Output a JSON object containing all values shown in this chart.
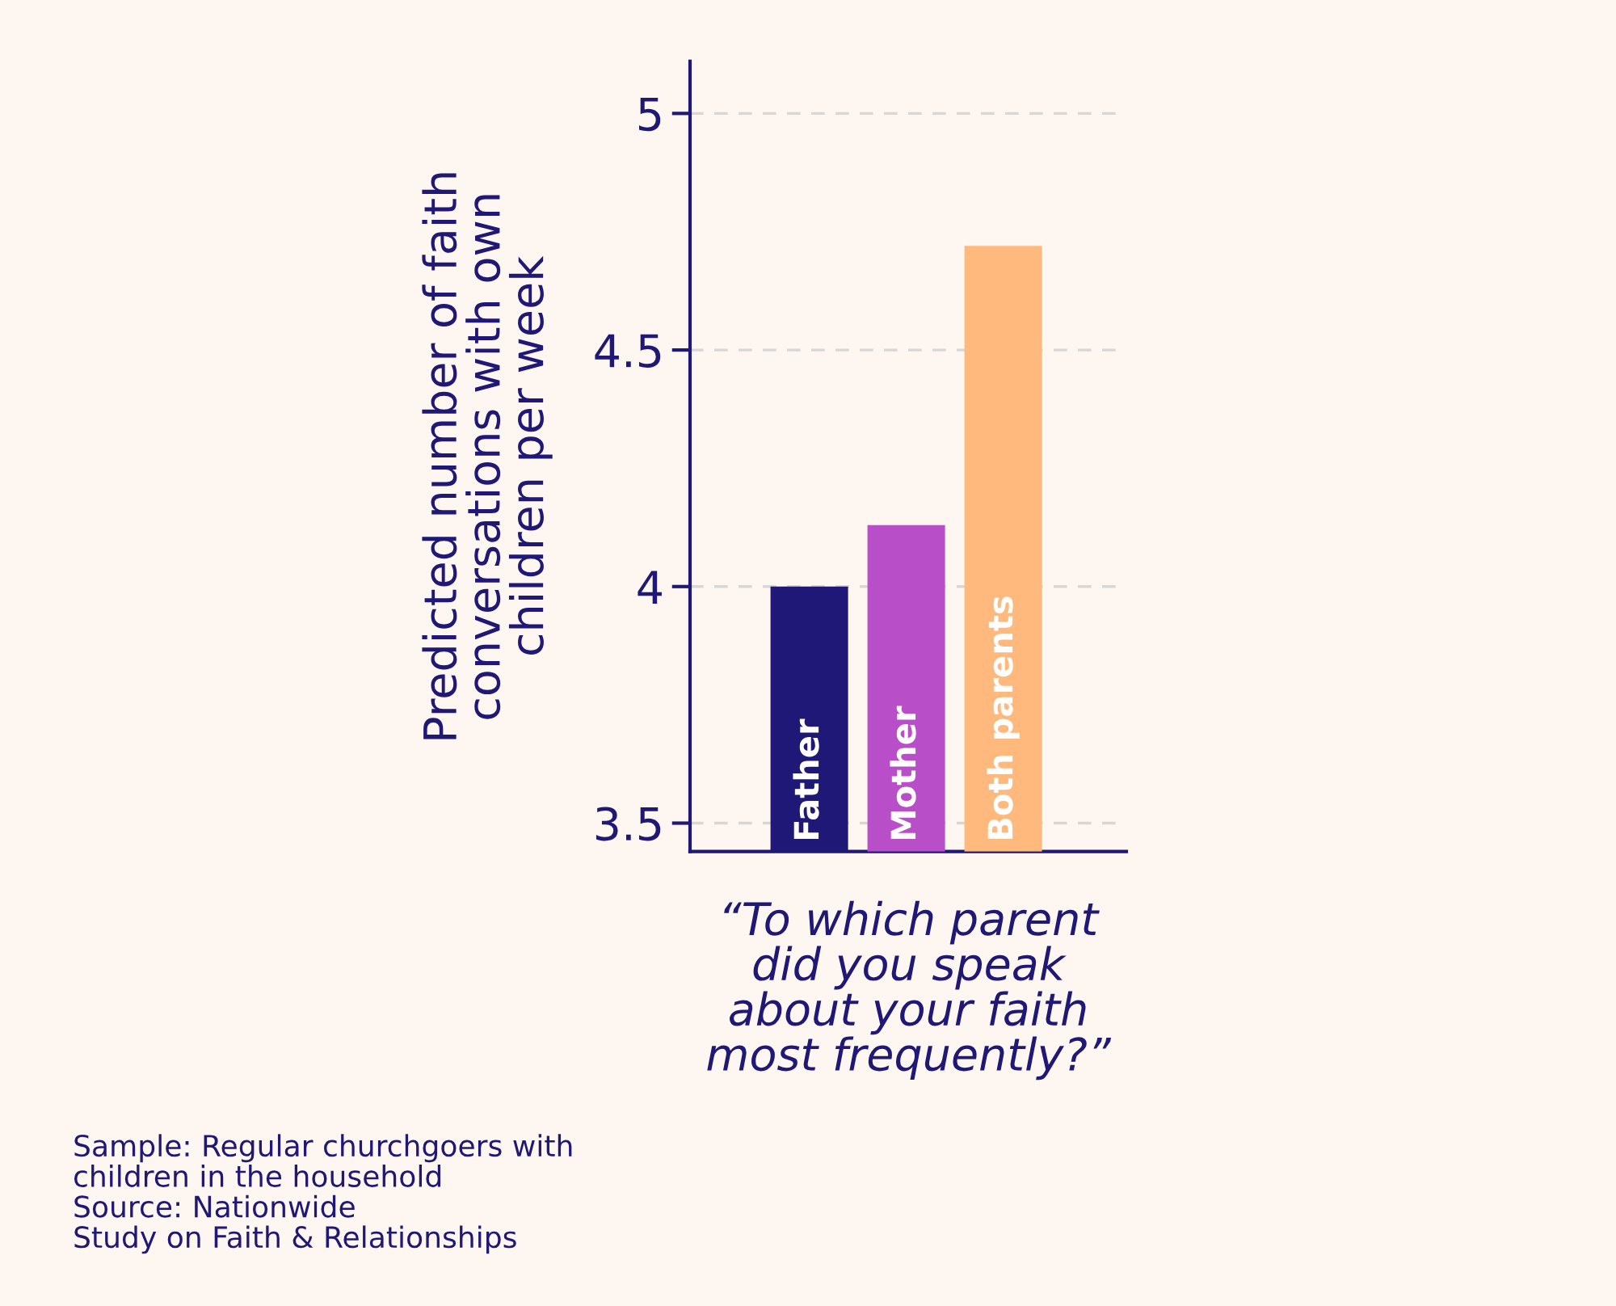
{
  "chart_data": {
    "type": "bar",
    "ylabel": "Predicted number of faith\nconversations with own\nchildren per week",
    "xlabel": "“To which parent\ndid you speak\nabout your faith\nmost frequently?”",
    "categories": [
      "Father",
      "Mother",
      "Both parents"
    ],
    "values": [
      4.0,
      4.13,
      4.72
    ],
    "colors": [
      "#1f1876",
      "#b84fc9",
      "#ffb97c"
    ],
    "ylim": [
      3.44,
      5.11
    ],
    "yticks": [
      3.5,
      4,
      4.5,
      5
    ],
    "grid": "y",
    "annotations": [
      "Sample: Regular churchgoers with\nchildren in the household\nSource: Nationwide\nStudy on Faith & Relationships"
    ]
  }
}
